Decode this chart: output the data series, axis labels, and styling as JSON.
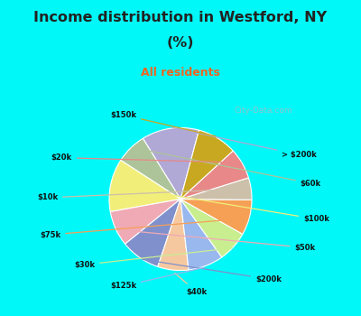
{
  "title_line1": "Income distribution in Westford, NY",
  "title_line2": "(%)",
  "subtitle": "All residents",
  "labels": [
    "> $200k",
    "$60k",
    "$100k",
    "$50k",
    "$200k",
    "$40k",
    "$125k",
    "$30k",
    "$75k",
    "$10k",
    "$20k",
    "$150k"
  ],
  "values": [
    13,
    7,
    12,
    8,
    9,
    7,
    8,
    7,
    8,
    5,
    7,
    9
  ],
  "colors": [
    "#b0a8d5",
    "#adc49a",
    "#f2ee7a",
    "#f0aab5",
    "#8090cc",
    "#f5c8a0",
    "#99b8ee",
    "#c8ee90",
    "#f5a055",
    "#ccc0aa",
    "#e88888",
    "#c8a820"
  ],
  "bg_color": "#00f8f8",
  "chart_bg_top": "#f0faf5",
  "chart_bg_bottom": "#d8f0e8",
  "title_color": "#222222",
  "subtitle_color": "#ee6622",
  "label_color": "#111111",
  "watermark": "City-Data.com",
  "startangle": 75
}
